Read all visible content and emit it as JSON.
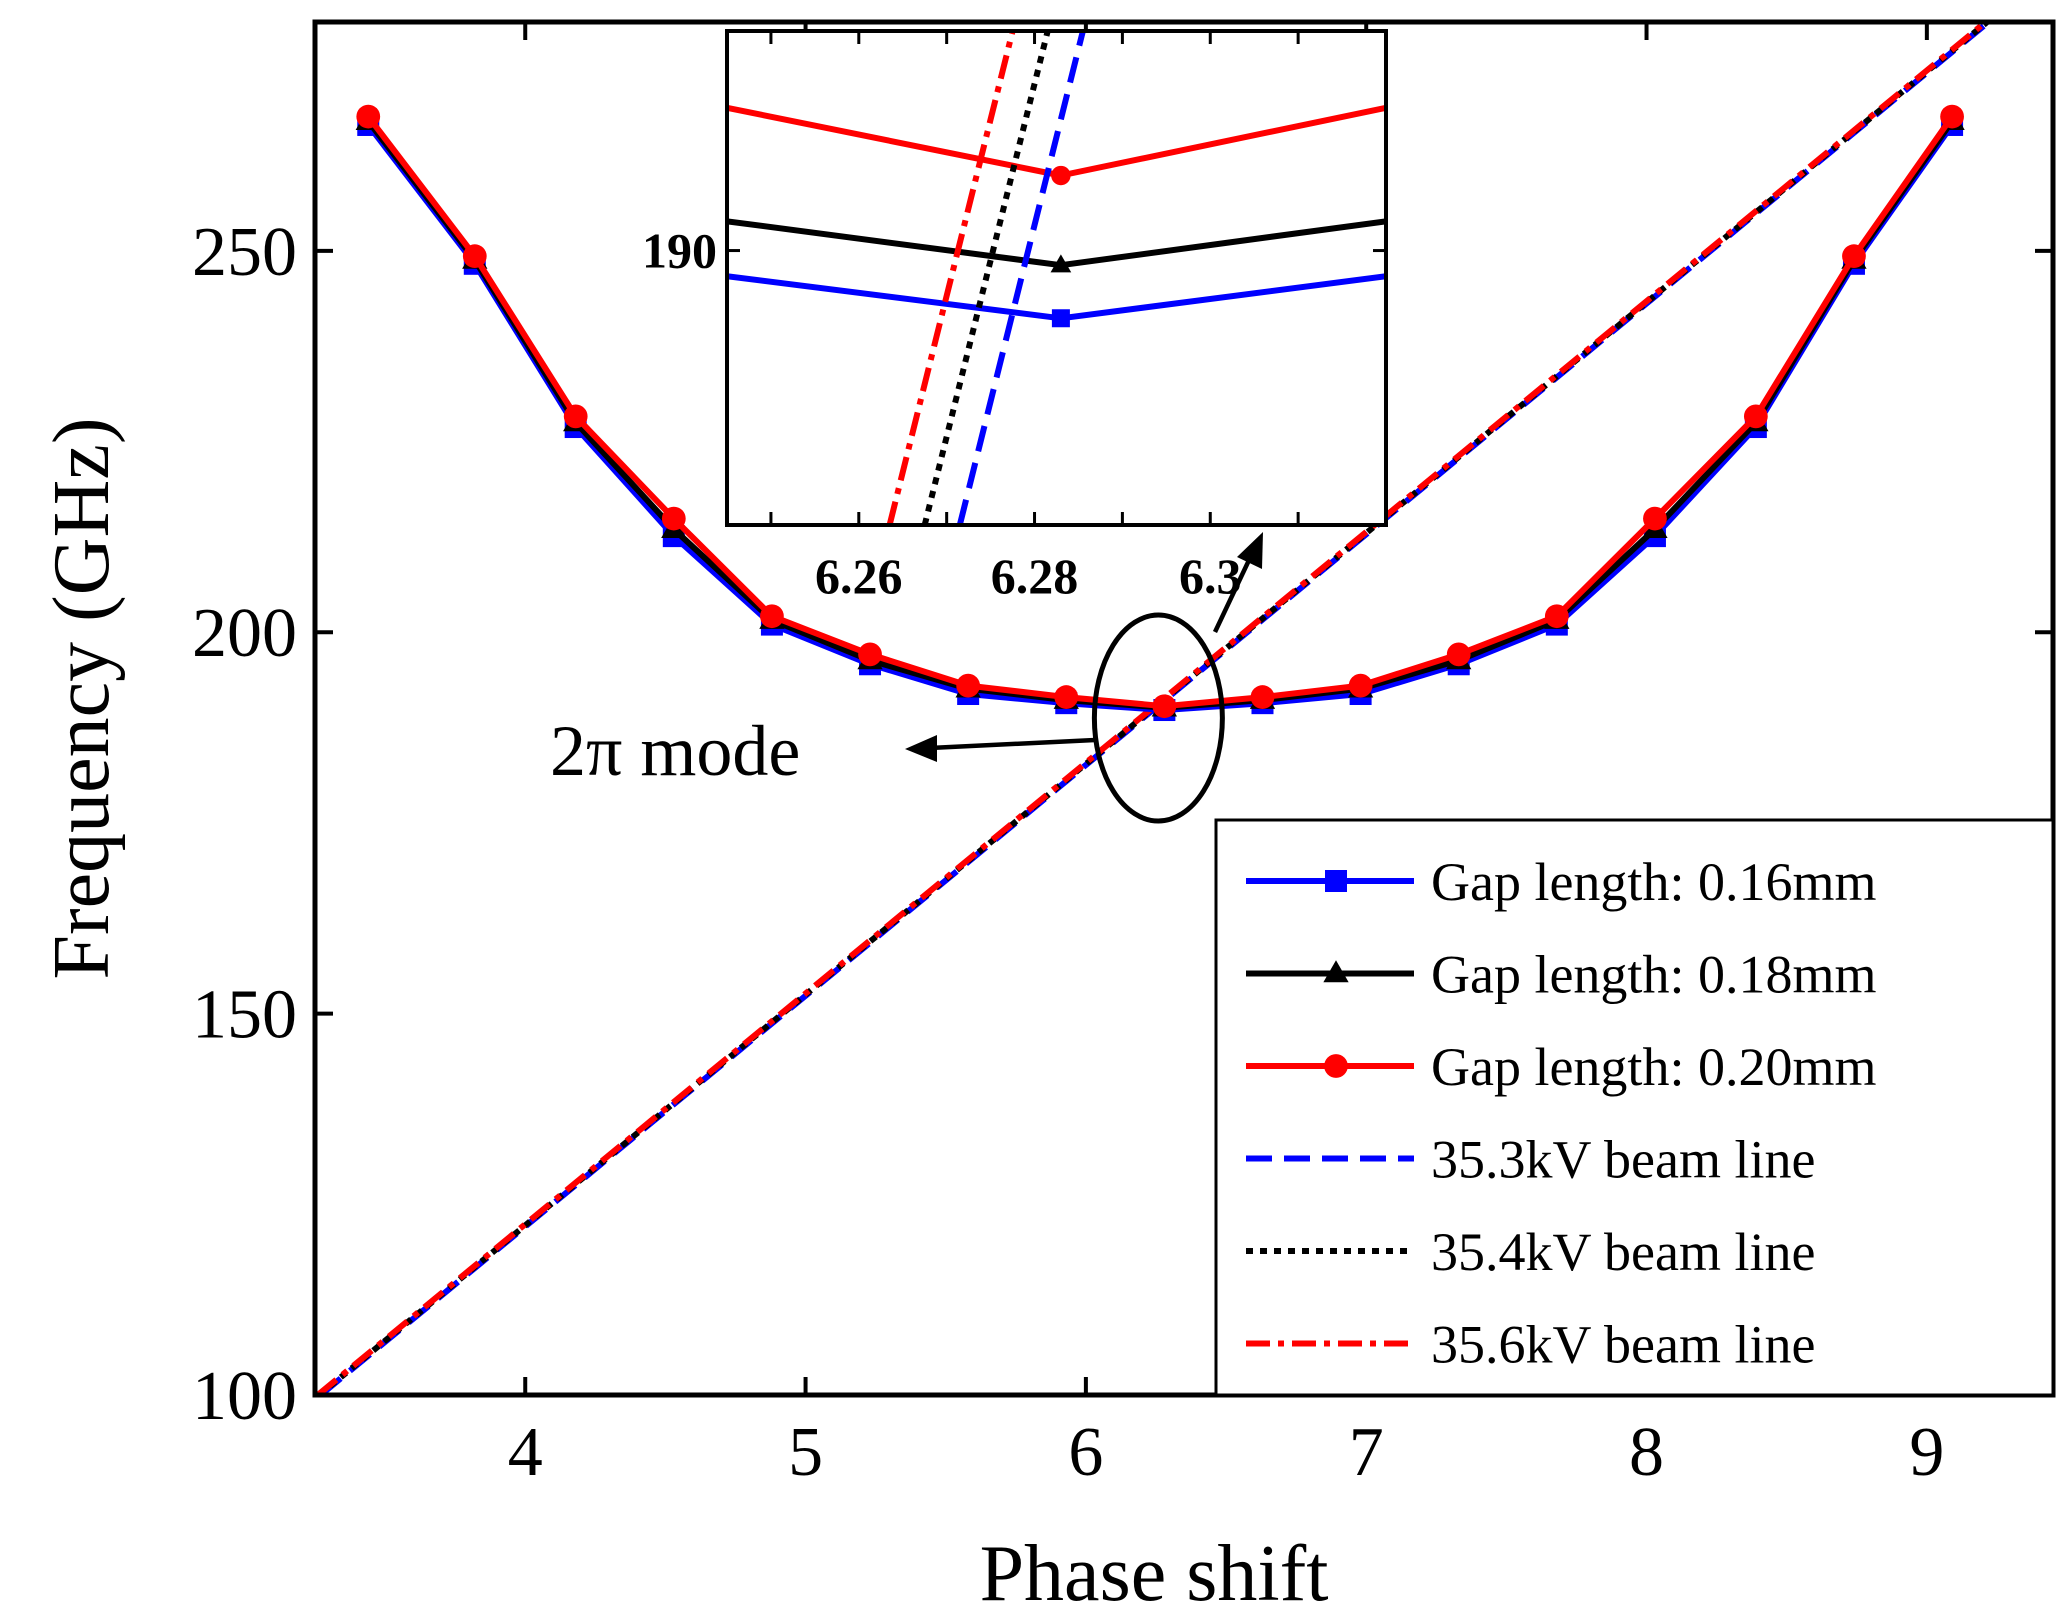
{
  "chart_data": {
    "type": "line",
    "xlabel": "Phase shift",
    "ylabel": "Frequency (GHz)",
    "xlim": [
      3.25,
      9.45
    ],
    "ylim": [
      100,
      280
    ],
    "xticks": [
      4,
      5,
      6,
      7,
      8,
      9
    ],
    "yticks": [
      100,
      150,
      200,
      250
    ],
    "grid": false,
    "legend_position": "bottom-right",
    "series": [
      {
        "name": "Gap length: 0.16mm",
        "color": "#0000ff",
        "style": "solid",
        "marker": "square",
        "x": [
          3.44,
          3.82,
          4.18,
          4.53,
          4.88,
          5.23,
          5.58,
          5.93,
          6.28,
          6.63,
          6.98,
          7.33,
          7.68,
          8.03,
          8.39,
          8.74,
          9.09
        ],
        "y": [
          266.5,
          248.3,
          226.9,
          212.6,
          201.0,
          195.8,
          191.9,
          190.7,
          189.8,
          190.7,
          191.9,
          195.8,
          201.0,
          212.6,
          226.9,
          248.3,
          266.5
        ]
      },
      {
        "name": "Gap length: 0.18mm",
        "color": "#000000",
        "style": "solid",
        "marker": "triangle",
        "x": [
          3.44,
          3.82,
          4.18,
          4.53,
          4.88,
          5.23,
          5.58,
          5.93,
          6.28,
          6.63,
          6.98,
          7.33,
          7.68,
          8.03,
          8.39,
          8.74,
          9.09
        ],
        "y": [
          267.0,
          248.8,
          227.5,
          213.5,
          201.6,
          196.3,
          192.6,
          191.1,
          190.1,
          191.1,
          192.6,
          196.3,
          201.6,
          213.5,
          227.5,
          248.8,
          267.0
        ]
      },
      {
        "name": "Gap length: 0.20mm",
        "color": "#ff0000",
        "style": "solid",
        "marker": "circle",
        "x": [
          3.44,
          3.82,
          4.18,
          4.53,
          4.88,
          5.23,
          5.58,
          5.93,
          6.28,
          6.63,
          6.98,
          7.33,
          7.68,
          8.03,
          8.39,
          8.74,
          9.09
        ],
        "y": [
          267.6,
          249.3,
          228.3,
          214.9,
          202.1,
          197.1,
          193.0,
          191.5,
          190.3,
          191.5,
          193.0,
          197.1,
          202.1,
          214.9,
          228.3,
          249.3,
          267.6
        ]
      },
      {
        "name": "35.3kV beam line",
        "color": "#0000ff",
        "style": "dashed",
        "marker": "none",
        "x": [
          3.27,
          9.22
        ],
        "y": [
          100.0,
          280.0
        ]
      },
      {
        "name": "35.4kV beam line",
        "color": "#000000",
        "style": "dotted",
        "marker": "none",
        "x": [
          3.265,
          9.215
        ],
        "y": [
          100.0,
          280.0
        ]
      },
      {
        "name": "35.6kV beam line",
        "color": "#ff0000",
        "style": "dashdot",
        "marker": "none",
        "x": [
          3.26,
          9.21
        ],
        "y": [
          100.0,
          280.0
        ]
      }
    ],
    "inset": {
      "xlim": [
        6.245,
        6.32
      ],
      "ylim": [
        188.5,
        191.2
      ],
      "xticks": [
        "6.26",
        "6.28",
        "6.3"
      ],
      "xtick_values": [
        6.26,
        6.28,
        6.3
      ],
      "yticks": [
        "190"
      ],
      "ytick_values": [
        190
      ],
      "series": [
        {
          "color": "#ff0000",
          "style": "solid",
          "marker": "circle",
          "x": [
            6.245,
            6.283,
            6.32
          ],
          "y": [
            190.78,
            190.41,
            190.78
          ]
        },
        {
          "color": "#000000",
          "style": "solid",
          "marker": "triangle",
          "x": [
            6.245,
            6.283,
            6.32
          ],
          "y": [
            190.16,
            189.92,
            190.16
          ]
        },
        {
          "color": "#0000ff",
          "style": "solid",
          "marker": "square",
          "x": [
            6.245,
            6.283,
            6.32
          ],
          "y": [
            189.86,
            189.63,
            189.86
          ]
        },
        {
          "color": "#ff0000",
          "style": "dashdot",
          "marker": "none",
          "x": [
            6.2635,
            6.2775
          ],
          "y": [
            188.5,
            191.2
          ]
        },
        {
          "color": "#000000",
          "style": "dotted",
          "marker": "none",
          "x": [
            6.2675,
            6.2815
          ],
          "y": [
            188.5,
            191.2
          ]
        },
        {
          "color": "#0000ff",
          "style": "dashed",
          "marker": "none",
          "x": [
            6.2715,
            6.2855
          ],
          "y": [
            188.5,
            191.2
          ]
        }
      ]
    },
    "annotation": {
      "text": "2π mode",
      "x": 6.28,
      "y": 189.8
    }
  }
}
